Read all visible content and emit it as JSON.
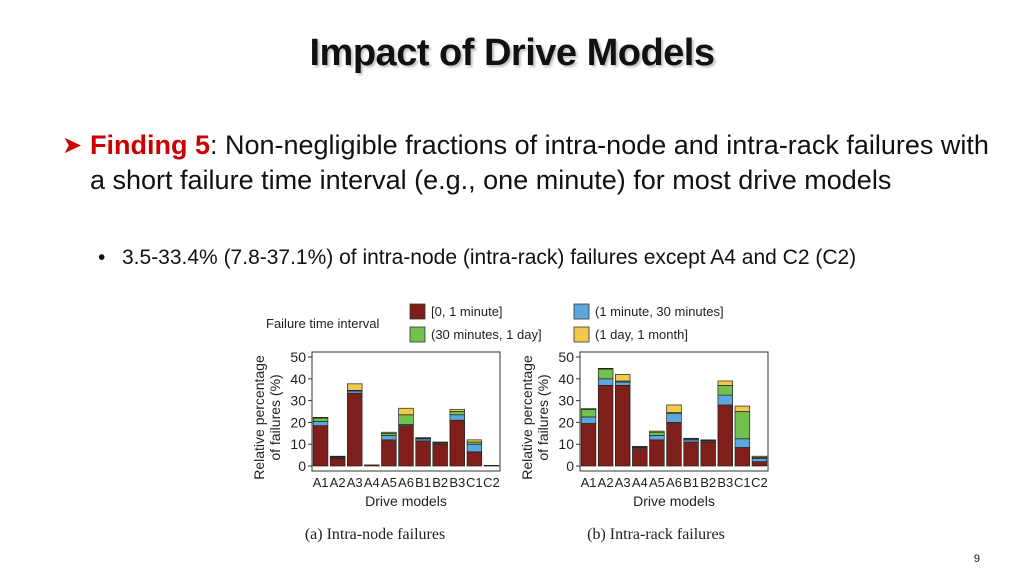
{
  "slide": {
    "title": "Impact of Drive Models",
    "finding_label": "Finding 5",
    "finding_text": ": Non-negligible fractions of intra-node and intra-rack failures with a short failure time interval (e.g., one minute) for most drive models",
    "sub_bullet": "3.5-33.4% (7.8-37.1%) of intra-node (intra-rack) failures except A4 and C2 (C2)",
    "page_number": "9"
  },
  "colors": {
    "accent": "#cc0000",
    "series": [
      "#7f1f1a",
      "#5aa8dd",
      "#72c04d",
      "#f2c94c"
    ]
  },
  "chart_data": [
    {
      "type": "bar",
      "stacked": true,
      "caption": "(a) Intra-node failures",
      "xlabel": "Drive models",
      "ylabel": "Relative percentage of failures (%)",
      "ylim": [
        0,
        50
      ],
      "yticks": [
        0,
        10,
        20,
        30,
        40,
        50
      ],
      "legend_title": "Failure time interval",
      "legend_position": "top",
      "categories": [
        "A1",
        "A2",
        "A3",
        "A4",
        "A5",
        "A6",
        "B1",
        "B2",
        "B3",
        "C1",
        "C2"
      ],
      "series": [
        {
          "name": "[0, 1 minute]",
          "values": [
            18.5,
            3.5,
            33.4,
            0.5,
            12,
            18.5,
            11.5,
            10,
            21,
            6.5,
            0.3
          ]
        },
        {
          "name": "(1 minute, 30 minutes]",
          "values": [
            2,
            0.5,
            1,
            0,
            2,
            0.5,
            1,
            0.5,
            2.5,
            3.5,
            0
          ]
        },
        {
          "name": "(30 minutes, 1 day]",
          "values": [
            1.5,
            0.2,
            0.3,
            0,
            1,
            4.5,
            0.2,
            0.2,
            1.5,
            1,
            0
          ]
        },
        {
          "name": "(1 day, 1 month]",
          "values": [
            0.3,
            0.3,
            3,
            0,
            0.5,
            3,
            0.3,
            0.3,
            1,
            1,
            0
          ]
        }
      ]
    },
    {
      "type": "bar",
      "stacked": true,
      "caption": "(b) Intra-rack failures",
      "xlabel": "Drive models",
      "ylabel": "Relative percentage of failures (%)",
      "ylim": [
        0,
        50
      ],
      "yticks": [
        0,
        10,
        20,
        30,
        40,
        50
      ],
      "categories": [
        "A1",
        "A2",
        "A3",
        "A4",
        "A5",
        "A6",
        "B1",
        "B2",
        "B3",
        "C1",
        "C2"
      ],
      "series": [
        {
          "name": "[0, 1 minute]",
          "values": [
            19.5,
            37,
            37,
            8,
            12,
            20,
            11,
            11,
            28,
            8.5,
            2
          ]
        },
        {
          "name": "(1 minute, 30 minutes]",
          "values": [
            3,
            3,
            1.5,
            0.5,
            2,
            4,
            1,
            0.5,
            4.5,
            4,
            1.5
          ]
        },
        {
          "name": "(30 minutes, 1 day]",
          "values": [
            3.5,
            4.5,
            0.5,
            0.3,
            1.5,
            0.5,
            0.5,
            0.3,
            4.5,
            12.5,
            0.5
          ]
        },
        {
          "name": "(1 day, 1 month]",
          "values": [
            0.3,
            0.3,
            3,
            0.2,
            0.5,
            3.5,
            0.2,
            0.2,
            2,
            2.5,
            0.5
          ]
        }
      ]
    }
  ]
}
